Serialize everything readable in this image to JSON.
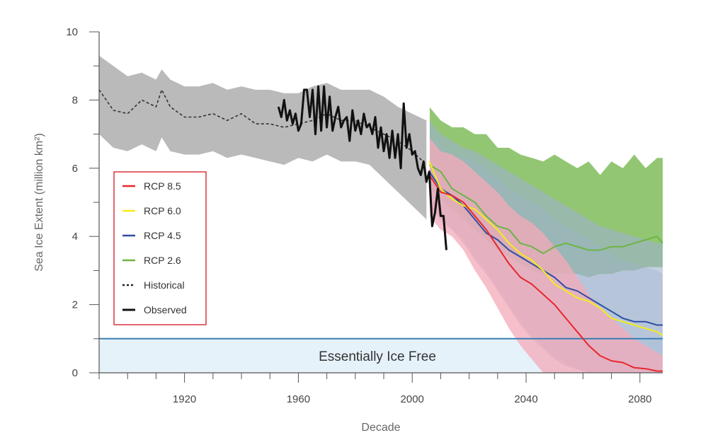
{
  "chart_data": {
    "type": "line",
    "title": "",
    "xlabel": "Decade",
    "ylabel": "Sea Ice Extent (million km²)",
    "xlim": [
      1890,
      2088
    ],
    "ylim": [
      0,
      10
    ],
    "x_ticks": [
      1920,
      1960,
      2000,
      2040,
      2080
    ],
    "y_ticks": [
      0,
      2,
      4,
      6,
      8,
      10
    ],
    "annotation": "Essentially Ice Free",
    "threshold": 1,
    "colors": {
      "rcp85": "#e8262c",
      "rcp85_band": "#f4a9b8",
      "rcp60": "#f3ec19",
      "rcp45": "#2e4fa3",
      "rcp45_band": "#9fb1cf",
      "rcp26": "#6cb544",
      "rcp26_band": "#8cc36b",
      "historical_band": "#b3b3b3",
      "threshold_line": "#3a7fb3",
      "ice_free_fill": "#e6f2fa",
      "legend_border": "#d9363e"
    },
    "legend": [
      {
        "label": "RCP 8.5",
        "color": "#e8262c",
        "dash": false
      },
      {
        "label": "RCP 6.0",
        "color": "#f3ec19",
        "dash": false
      },
      {
        "label": "RCP 4.5",
        "color": "#2e4fa3",
        "dash": false
      },
      {
        "label": "RCP 2.6",
        "color": "#6cb544",
        "dash": false
      },
      {
        "label": "Historical",
        "color": "#222222",
        "dash": true
      },
      {
        "label": "Observed",
        "color": "#111111",
        "dash": false
      }
    ],
    "historical": {
      "x": [
        1890,
        1895,
        1900,
        1905,
        1910,
        1912,
        1915,
        1920,
        1925,
        1930,
        1935,
        1940,
        1945,
        1950,
        1955,
        1960,
        1965,
        1970,
        1975,
        1980,
        1985,
        1990,
        1995,
        2000,
        2005
      ],
      "y": [
        8.3,
        7.7,
        7.6,
        8.0,
        7.8,
        8.3,
        7.8,
        7.5,
        7.5,
        7.6,
        7.4,
        7.6,
        7.3,
        7.3,
        7.2,
        7.3,
        7.4,
        7.6,
        7.4,
        7.4,
        7.2,
        7.0,
        6.8,
        6.5,
        6.1
      ],
      "upper": [
        9.3,
        9.0,
        8.7,
        8.8,
        8.6,
        8.9,
        8.6,
        8.4,
        8.4,
        8.5,
        8.3,
        8.4,
        8.3,
        8.3,
        8.2,
        8.2,
        8.4,
        8.5,
        8.3,
        8.3,
        8.3,
        8.1,
        7.8,
        7.6,
        7.4
      ],
      "lower": [
        7.0,
        6.6,
        6.5,
        6.7,
        6.5,
        6.9,
        6.5,
        6.4,
        6.4,
        6.5,
        6.3,
        6.4,
        6.3,
        6.2,
        6.1,
        6.3,
        6.2,
        6.4,
        6.2,
        6.2,
        6.1,
        5.7,
        5.3,
        4.9,
        4.5
      ]
    },
    "observed": {
      "x": [
        1953,
        1954,
        1955,
        1956,
        1957,
        1958,
        1959,
        1960,
        1961,
        1962,
        1963,
        1964,
        1965,
        1966,
        1967,
        1968,
        1969,
        1970,
        1971,
        1972,
        1973,
        1974,
        1975,
        1976,
        1977,
        1978,
        1979,
        1980,
        1981,
        1982,
        1983,
        1984,
        1985,
        1986,
        1987,
        1988,
        1989,
        1990,
        1991,
        1992,
        1993,
        1994,
        1995,
        1996,
        1997,
        1998,
        1999,
        2000,
        2001,
        2002,
        2003,
        2004,
        2005,
        2006,
        2007,
        2008,
        2009,
        2010,
        2011,
        2012
      ],
      "y": [
        7.8,
        7.5,
        8.0,
        7.4,
        7.7,
        7.3,
        7.6,
        7.1,
        7.3,
        8.3,
        8.3,
        7.5,
        8.3,
        7.0,
        8.4,
        7.1,
        8.4,
        7.2,
        8.1,
        7.1,
        7.5,
        7.8,
        7.2,
        7.4,
        7.5,
        6.8,
        7.7,
        7.1,
        7.4,
        7.0,
        7.6,
        7.2,
        7.3,
        7.0,
        7.5,
        6.6,
        7.2,
        6.5,
        7.0,
        6.3,
        7.1,
        6.3,
        7.0,
        6.0,
        7.9,
        6.6,
        7.0,
        6.4,
        6.5,
        6.0,
        5.8,
        6.2,
        5.6,
        5.9,
        4.3,
        4.7,
        5.4,
        4.6,
        4.6,
        3.6
      ]
    },
    "series": [
      {
        "name": "RCP 8.5",
        "x": [
          2006,
          2010,
          2014,
          2018,
          2022,
          2026,
          2030,
          2034,
          2038,
          2042,
          2046,
          2050,
          2054,
          2058,
          2062,
          2066,
          2070,
          2074,
          2078,
          2082,
          2086,
          2088
        ],
        "y": [
          5.8,
          5.3,
          5.2,
          5.0,
          4.6,
          4.2,
          3.7,
          3.2,
          2.8,
          2.6,
          2.3,
          2.0,
          1.6,
          1.2,
          0.8,
          0.5,
          0.35,
          0.3,
          0.15,
          0.12,
          0.05,
          0.05
        ],
        "upper": [
          6.9,
          6.5,
          6.4,
          6.2,
          5.9,
          5.6,
          5.3,
          4.9,
          4.6,
          4.4,
          4.1,
          3.7,
          3.3,
          2.8,
          2.3,
          1.9,
          1.6,
          1.3,
          1.0,
          0.8,
          0.6,
          0.5
        ],
        "lower": [
          4.6,
          4.2,
          4.0,
          3.6,
          3.0,
          2.5,
          1.9,
          1.3,
          0.8,
          0.4,
          0.0,
          0.0,
          0.0,
          0.0,
          0.0,
          0.0,
          0.0,
          0.0,
          0.0,
          0.0,
          0.0,
          0.0
        ]
      },
      {
        "name": "RCP 6.0",
        "x": [
          2006,
          2010,
          2014,
          2018,
          2022,
          2026,
          2030,
          2034,
          2038,
          2042,
          2046,
          2050,
          2054,
          2058,
          2062,
          2066,
          2070,
          2074,
          2078,
          2082,
          2086,
          2088
        ],
        "y": [
          6.2,
          5.4,
          5.1,
          4.9,
          4.8,
          4.5,
          4.2,
          3.8,
          3.5,
          3.3,
          3.0,
          2.6,
          2.4,
          2.2,
          2.1,
          1.9,
          1.6,
          1.5,
          1.4,
          1.3,
          1.2,
          1.1
        ],
        "upper": [
          7.0,
          6.6,
          6.4,
          6.3,
          6.2,
          6.0,
          5.7,
          5.4,
          5.2,
          5.0,
          4.8,
          4.5,
          4.3,
          4.1,
          3.9,
          3.7,
          3.5,
          3.3,
          3.2,
          3.1,
          3.0,
          2.9
        ],
        "lower": [
          4.9,
          4.4,
          4.2,
          3.9,
          3.4,
          3.0,
          2.5,
          2.0,
          1.5,
          1.1,
          0.8,
          0.5,
          0.3,
          0.1,
          0.0,
          0.0,
          0.0,
          0.0,
          0.0,
          0.0,
          0.0,
          0.0
        ]
      },
      {
        "name": "RCP 4.5",
        "x": [
          2006,
          2010,
          2014,
          2018,
          2022,
          2026,
          2030,
          2034,
          2038,
          2042,
          2046,
          2050,
          2054,
          2058,
          2062,
          2066,
          2070,
          2074,
          2078,
          2082,
          2086,
          2088
        ],
        "y": [
          5.9,
          5.4,
          5.2,
          4.9,
          4.5,
          4.1,
          3.9,
          3.6,
          3.4,
          3.2,
          3.0,
          2.8,
          2.5,
          2.4,
          2.2,
          2.0,
          1.8,
          1.6,
          1.5,
          1.5,
          1.4,
          1.4
        ],
        "upper": [
          7.4,
          7.0,
          6.8,
          6.6,
          6.5,
          6.3,
          6.1,
          5.9,
          5.7,
          5.5,
          5.3,
          5.1,
          4.9,
          4.7,
          4.5,
          4.3,
          4.2,
          4.1,
          4.0,
          3.9,
          3.8,
          3.8
        ],
        "lower": [
          4.9,
          4.5,
          4.2,
          3.8,
          3.3,
          2.9,
          2.4,
          1.9,
          1.4,
          1.0,
          0.7,
          0.4,
          0.2,
          0.1,
          0.0,
          0.0,
          0.0,
          0.0,
          0.0,
          0.0,
          0.0,
          0.0
        ]
      },
      {
        "name": "RCP 2.6",
        "x": [
          2006,
          2010,
          2014,
          2018,
          2022,
          2026,
          2030,
          2034,
          2038,
          2042,
          2046,
          2050,
          2054,
          2058,
          2062,
          2066,
          2070,
          2074,
          2078,
          2082,
          2086,
          2088
        ],
        "y": [
          6.1,
          5.9,
          5.4,
          5.2,
          5.0,
          4.6,
          4.3,
          4.2,
          3.8,
          3.7,
          3.5,
          3.7,
          3.8,
          3.7,
          3.6,
          3.6,
          3.7,
          3.7,
          3.8,
          3.9,
          4.0,
          3.8
        ],
        "upper": [
          7.8,
          7.4,
          7.2,
          7.2,
          7.0,
          7.0,
          6.6,
          6.6,
          6.4,
          6.3,
          6.2,
          6.4,
          6.2,
          6.0,
          6.2,
          5.8,
          6.2,
          6.0,
          6.4,
          6.0,
          6.3,
          6.3
        ],
        "lower": [
          5.4,
          5.1,
          4.8,
          4.5,
          4.2,
          3.9,
          3.6,
          3.4,
          3.2,
          3.0,
          2.9,
          2.9,
          2.9,
          2.9,
          2.8,
          2.9,
          2.9,
          3.0,
          3.0,
          3.1,
          3.1,
          3.1
        ]
      }
    ]
  }
}
